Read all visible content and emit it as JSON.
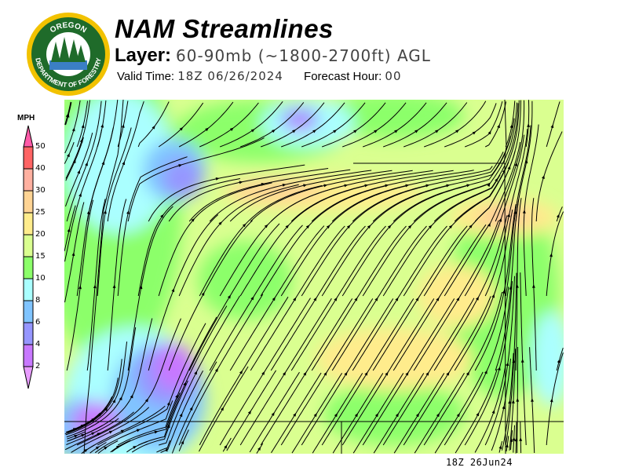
{
  "header": {
    "title": "NAM Streamlines",
    "layer_label": "Layer:",
    "layer_value": "60-90mb (~1800-2700ft) AGL",
    "valid_time_label": "Valid Time:",
    "valid_time": "18Z 06/26/2024",
    "forecast_hour_label": "Forecast Hour:",
    "forecast_hour": "00"
  },
  "logo": {
    "top_text": "OREGON",
    "ring_text": "DEPARTMENT OF FORESTRY"
  },
  "legend": {
    "unit": "MPH",
    "ticks": [
      "50",
      "40",
      "30",
      "25",
      "20",
      "15",
      "10",
      "8",
      "6",
      "4",
      "2"
    ],
    "colors": [
      "#ff5aa8",
      "#ff6464",
      "#ffb0a0",
      "#ffd494",
      "#ffec8c",
      "#daff90",
      "#8cff6a",
      "#aaffff",
      "#80c4ff",
      "#9696ff",
      "#c878ff",
      "#e89cff"
    ]
  },
  "map": {
    "timestamp": "18Z 26Jun24"
  }
}
